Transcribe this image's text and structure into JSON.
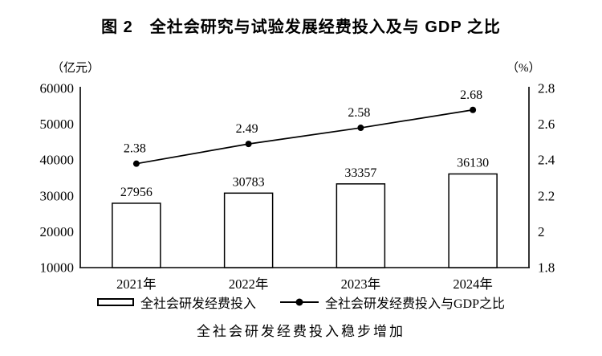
{
  "page": {
    "title": "图 2　全社会研究与试验发展经费投入及与 GDP 之比",
    "caption": "全社会研发经费投入稳步增加"
  },
  "chart_data": {
    "type": "bar",
    "subtype": "bar-line-combo",
    "categories": [
      "2021年",
      "2022年",
      "2023年",
      "2024年"
    ],
    "series": [
      {
        "name": "全社会研发经费投入",
        "type": "bar",
        "axis": "left",
        "values": [
          27956,
          30783,
          33357,
          36130
        ]
      },
      {
        "name": "全社会研发经费投入与GDP之比",
        "type": "line",
        "axis": "right",
        "values": [
          2.38,
          2.49,
          2.58,
          2.68
        ]
      }
    ],
    "left_axis": {
      "unit": "（亿元）",
      "min": 10000,
      "max": 60000,
      "ticks": [
        60000,
        50000,
        40000,
        30000,
        20000,
        10000
      ]
    },
    "right_axis": {
      "unit": "（%）",
      "min": 1.8,
      "max": 2.8,
      "ticks": [
        "2.8",
        "2.6",
        "2.4",
        "2.2",
        "2",
        "1.8"
      ]
    },
    "grid": false,
    "legend_position": "bottom",
    "colors": {
      "background": "#ffffff",
      "text": "#000000",
      "bar_fill": "#ffffff",
      "bar_border": "#000000",
      "line": "#000000"
    }
  }
}
